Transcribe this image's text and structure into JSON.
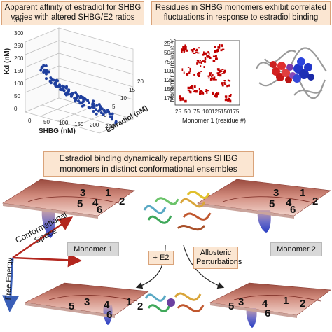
{
  "panels": {
    "top_left": {
      "title": "Apparent affinity of estradiol for SHBG varies with altered SHBG/E2 ratios"
    },
    "top_right": {
      "title": "Residues in SHBG monomers exhibit correlated fluctuations in response to estradiol binding"
    },
    "middle": {
      "title": "Estradiol binding dynamically repartitions SHBG monomers in distinct conformational ensembles"
    }
  },
  "scatter3d": {
    "zlabel": "Kd (nM)",
    "xlabel": "SHBG (nM)",
    "ylabel": "Estradiol (nM)",
    "z_ticks": [
      "0",
      "50",
      "100",
      "150",
      "200",
      "250",
      "300",
      "350"
    ],
    "x_ticks": [
      "0",
      "50",
      "100",
      "150",
      "200",
      "250"
    ],
    "y_ticks": [
      "0",
      "5",
      "10",
      "15",
      "20"
    ],
    "colors": {
      "points": "#1f3f9e"
    }
  },
  "contact_map": {
    "ylabel": "Monomer 2 (residue #)",
    "xlabel": "Monomer 1 (residue #)",
    "x_ticks": [
      "25",
      "50",
      "75",
      "100",
      "125",
      "150",
      "175"
    ],
    "y_ticks": [
      "25",
      "50",
      "75",
      "100",
      "125",
      "150",
      "175"
    ],
    "colors": {
      "contacts": "#c00000"
    }
  },
  "landscape": {
    "axis_x": "Conformational Space",
    "axis_y": "Free Energy",
    "monomer1": "Monomer 1",
    "monomer2": "Monomer 2",
    "arrow_left": "+ E2",
    "arrow_right": "Allosteric Perturbations",
    "basins": [
      "1",
      "2",
      "3",
      "4",
      "5",
      "6"
    ]
  }
}
